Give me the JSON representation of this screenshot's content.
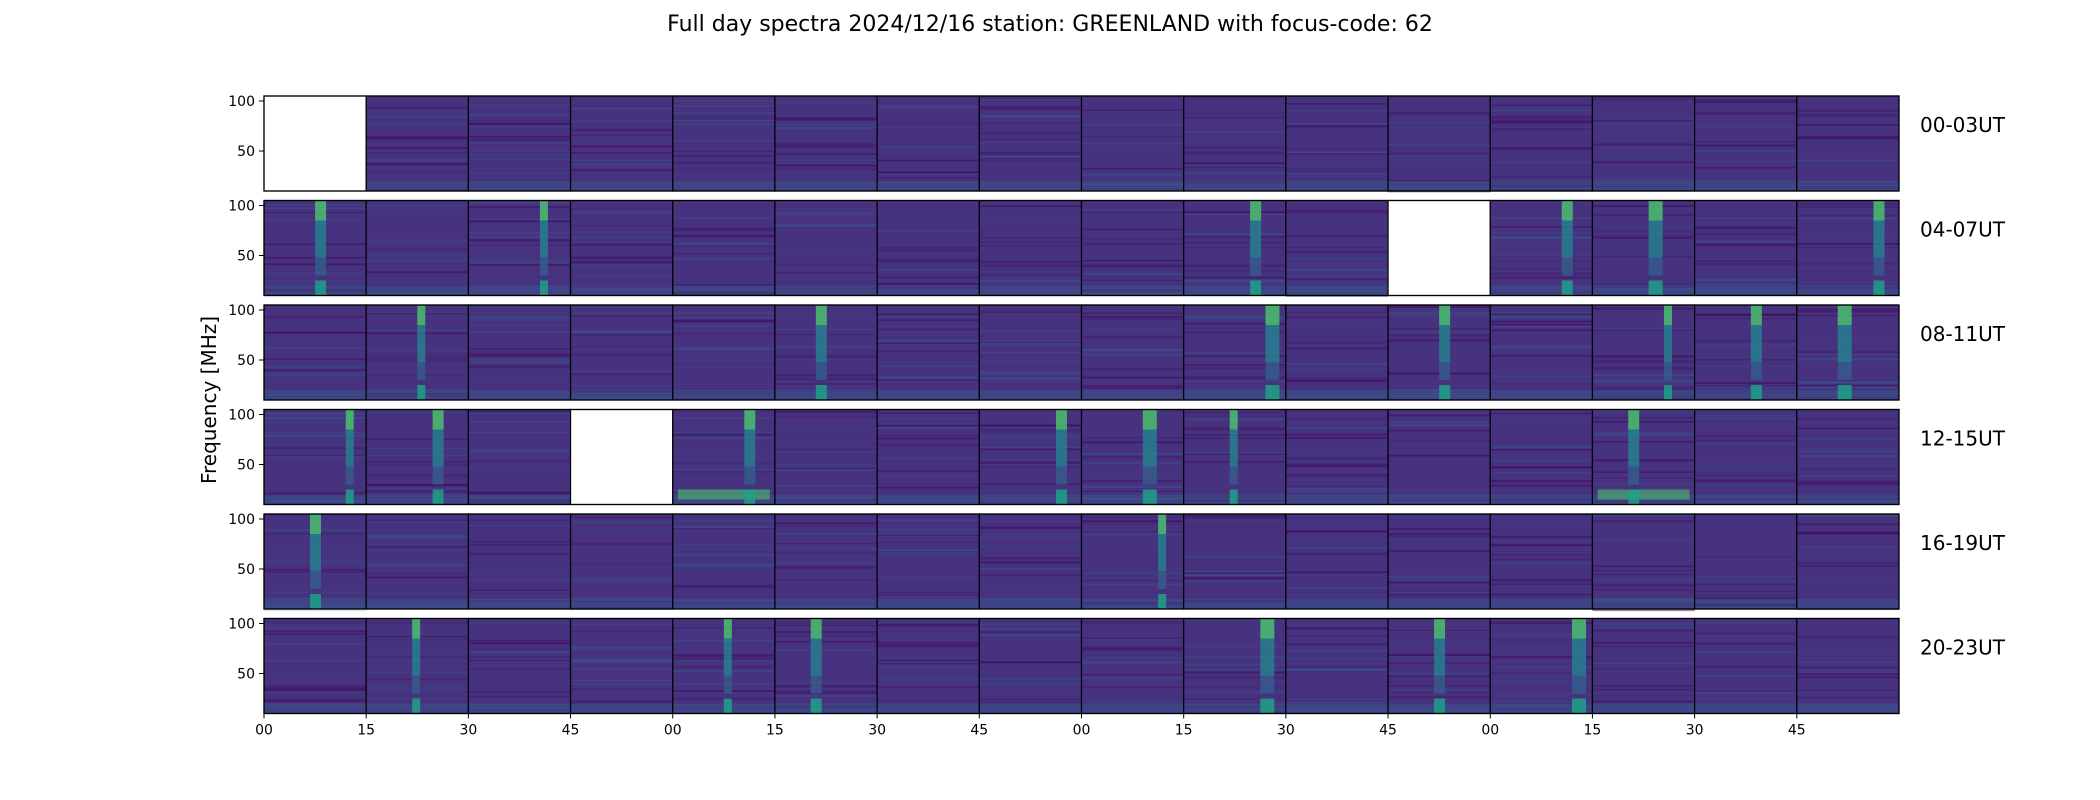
{
  "title": "Full day spectra 2024/12/16 station: GREENLAND with focus-code: 62",
  "chart_data": {
    "type": "heatmap",
    "title": "Full day spectra 2024/12/16 station: GREENLAND with focus-code: 62",
    "ylabel": "Frequency [MHz]",
    "ylim": [
      10,
      105
    ],
    "yticks": [
      50,
      100
    ],
    "xticks": [
      "00",
      "15",
      "30",
      "45",
      "00",
      "15",
      "30",
      "45",
      "00",
      "15",
      "30",
      "45",
      "00",
      "15",
      "30",
      "45"
    ],
    "rows": [
      {
        "label": "00-03UT",
        "missing_panels": [
          0
        ],
        "burst_panels": []
      },
      {
        "label": "04-07UT",
        "missing_panels": [
          11
        ],
        "burst_panels": [
          0,
          2,
          9,
          12,
          13,
          15
        ]
      },
      {
        "label": "08-11UT",
        "missing_panels": [],
        "burst_panels": [
          1,
          5,
          9,
          11,
          13,
          14,
          15
        ]
      },
      {
        "label": "12-15UT",
        "missing_panels": [
          3
        ],
        "burst_panels": [
          0,
          1,
          4,
          7,
          8,
          9,
          13
        ]
      },
      {
        "label": "16-19UT",
        "missing_panels": [],
        "burst_panels": [
          0,
          8
        ]
      },
      {
        "label": "20-23UT",
        "missing_panels": [],
        "burst_panels": [
          1,
          4,
          5,
          9,
          11,
          12
        ]
      }
    ],
    "panels_per_row": 16,
    "panel_minutes": 15,
    "colormap": [
      "#440154",
      "#46327e",
      "#365c8d",
      "#277f8e",
      "#1fa187",
      "#4ac16d",
      "#a0da39"
    ]
  }
}
